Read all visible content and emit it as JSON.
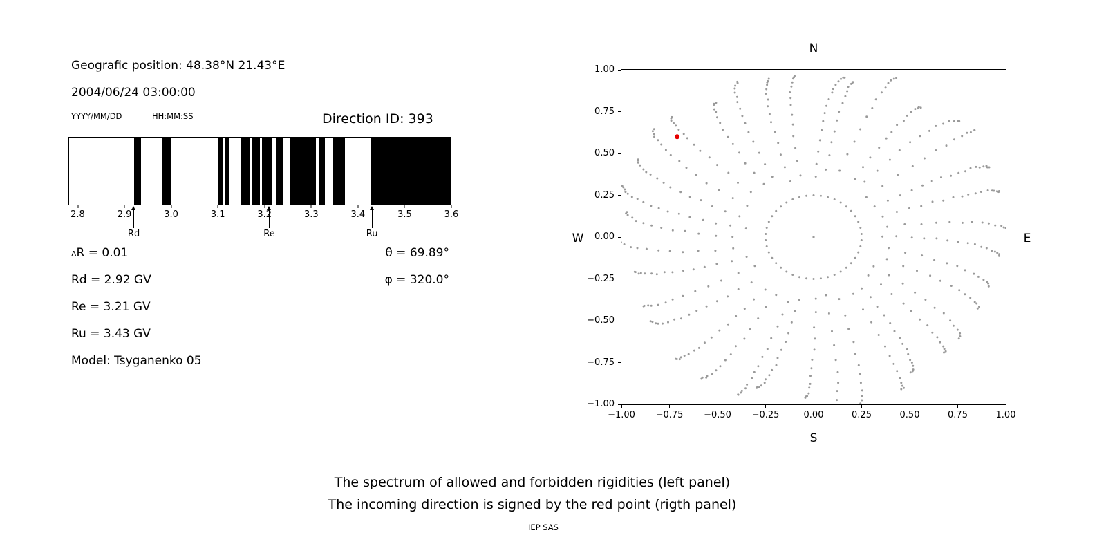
{
  "header": {
    "position": "Geografic position: 48.38°N 21.43°E",
    "datetime": "2004/06/24 03:00:00",
    "date_format_label": "YYYY/MM/DD",
    "time_format_label": "HH:MM:SS",
    "direction_id_label": "Direction ID: 393"
  },
  "params": {
    "delta_symbol": "Δ",
    "delta_rest": "R = 0.01",
    "rd": "Rd = 2.92 GV",
    "re": "Re = 3.21 GV",
    "ru": "Ru = 3.43 GV",
    "model": "Model: Tsyganenko 05",
    "theta": "θ = 69.89°",
    "phi": "φ = 320.0°"
  },
  "caption": {
    "line1": "The spectrum of allowed and forbidden rigidities (left panel)",
    "line2": "The incoming direction is signed by the red point (rigth panel)",
    "credit": "IEP SAS"
  },
  "chart_data": [
    {
      "type": "bar",
      "subtype": "rigidity-spectrum",
      "title": "",
      "xlabel": "",
      "ylabel": "",
      "xlim": [
        2.78,
        3.6
      ],
      "tick_values": [
        2.8,
        2.9,
        3.0,
        3.1,
        3.2,
        3.3,
        3.4,
        3.5,
        3.6
      ],
      "tick_labels": [
        "2.8",
        "2.9",
        "3.0",
        "3.1",
        "3.2",
        "3.3",
        "3.4",
        "3.5",
        "3.6"
      ],
      "allowed_color": "#000000",
      "forbidden_color": "#ffffff",
      "allowed_bands_gv": [
        [
          2.92,
          2.934
        ],
        [
          2.981,
          3.0
        ],
        [
          3.1,
          3.11
        ],
        [
          3.116,
          3.124
        ],
        [
          3.15,
          3.168
        ],
        [
          3.174,
          3.19
        ],
        [
          3.195,
          3.216
        ],
        [
          3.224,
          3.24
        ],
        [
          3.256,
          3.31
        ],
        [
          3.317,
          3.33
        ],
        [
          3.348,
          3.372
        ],
        [
          3.427,
          3.6
        ]
      ],
      "markers": [
        {
          "label": "Rd",
          "value_gv": 2.92
        },
        {
          "label": "Re",
          "value_gv": 3.21
        },
        {
          "label": "Ru",
          "value_gv": 3.43
        }
      ]
    },
    {
      "type": "scatter",
      "subtype": "asymptotic-directions",
      "title": "",
      "xlim": [
        -1,
        1
      ],
      "ylim": [
        -1,
        1
      ],
      "grid": false,
      "tick_values": [
        -1,
        -0.75,
        -0.5,
        -0.25,
        0,
        0.25,
        0.5,
        0.75,
        1
      ],
      "tick_labels": [
        "−1.00",
        "−0.75",
        "−0.50",
        "−0.25",
        "0.00",
        "0.25",
        "0.50",
        "0.75",
        "1.00"
      ],
      "compass": {
        "top": "N",
        "right": "E",
        "bottom": "S",
        "left": "W"
      },
      "dot_color": "#9a9a9a",
      "red_point": {
        "x": -0.71,
        "y": 0.6,
        "color": "#e60000"
      },
      "pattern": {
        "center_dot": true,
        "ring_radius": 0.25,
        "ring_count": 42,
        "spoke_count": 36,
        "spoke_start_deg": 0,
        "spoke_step_deg": 10,
        "spoke_r_min": 0.35,
        "spoke_r_max": 1.06,
        "spoke_points": 13,
        "spoke_curve_deg": 8
      }
    }
  ]
}
